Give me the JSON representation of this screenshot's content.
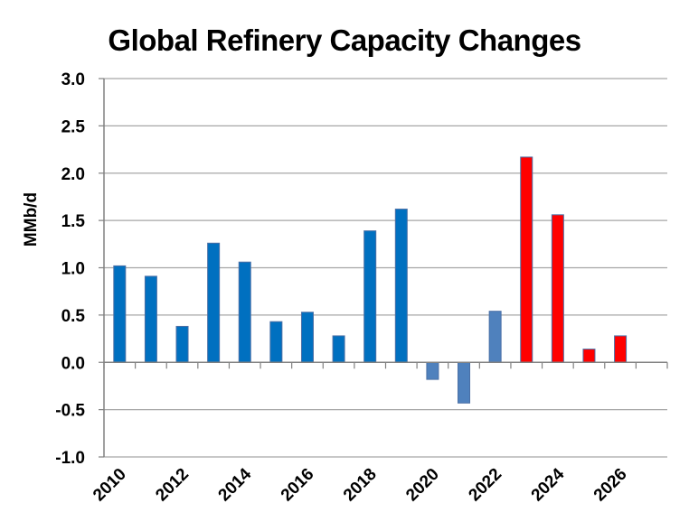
{
  "chart_data": {
    "type": "bar",
    "title": "Global Refinery Capacity Changes",
    "ylabel": "MMb/d",
    "xlabel": "",
    "ylim": [
      -1.0,
      3.0
    ],
    "ytick_step": 0.5,
    "yticks": [
      "-1.0",
      "-0.5",
      "0.0",
      "0.5",
      "1.0",
      "1.5",
      "2.0",
      "2.5",
      "3.0"
    ],
    "grid": true,
    "legend": "none",
    "categories": [
      "2010",
      "2011",
      "2012",
      "2013",
      "2014",
      "2015",
      "2016",
      "2017",
      "2018",
      "2019",
      "2020",
      "2021",
      "2022",
      "2023",
      "2024",
      "2025",
      "2026"
    ],
    "xtick_labels": [
      "2010",
      "2012",
      "2014",
      "2016",
      "2018",
      "2020",
      "2022",
      "2024",
      "2026"
    ],
    "values": [
      1.02,
      0.91,
      0.38,
      1.26,
      1.06,
      0.43,
      0.53,
      0.28,
      1.39,
      1.62,
      -0.18,
      -0.43,
      0.54,
      2.17,
      1.56,
      0.14,
      0.28
    ],
    "bar_colors": [
      "#0070C0",
      "#0070C0",
      "#0070C0",
      "#0070C0",
      "#0070C0",
      "#0070C0",
      "#0070C0",
      "#0070C0",
      "#0070C0",
      "#0070C0",
      "#4F81BD",
      "#4F81BD",
      "#4F81BD",
      "#FF0000",
      "#FF0000",
      "#FF0000",
      "#FF0000"
    ],
    "colors": {
      "actual": "#0070C0",
      "recent": "#4F81BD",
      "forecast": "#FF0000",
      "gridline": "#A6A6A6",
      "axis": "#808080"
    }
  }
}
